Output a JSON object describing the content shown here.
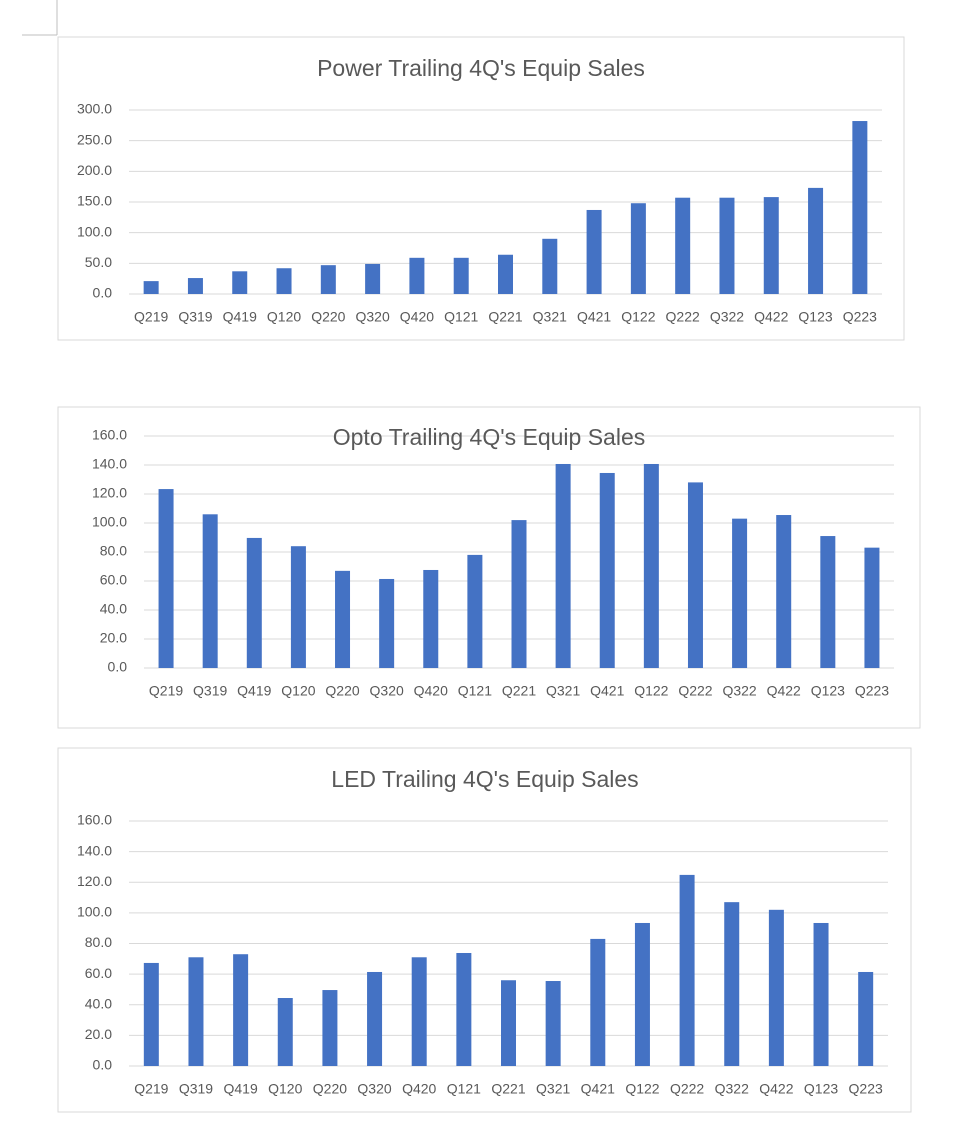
{
  "chart_data": [
    {
      "type": "bar",
      "title": "Power Trailing 4Q's Equip Sales",
      "categories": [
        "Q219",
        "Q319",
        "Q419",
        "Q120",
        "Q220",
        "Q320",
        "Q420",
        "Q121",
        "Q221",
        "Q321",
        "Q421",
        "Q122",
        "Q222",
        "Q322",
        "Q422",
        "Q123",
        "Q223"
      ],
      "values": [
        21,
        26,
        37,
        42,
        47,
        49,
        59,
        59,
        64,
        90,
        137,
        148,
        157,
        157,
        158,
        173,
        282
      ],
      "color": "#4472c4",
      "ylim": [
        0,
        300
      ],
      "yticks": [
        {
          "value": 0,
          "label": "0.0"
        },
        {
          "value": 50,
          "label": "50.0"
        },
        {
          "value": 100,
          "label": "100.0"
        },
        {
          "value": 150,
          "label": "150.0"
        },
        {
          "value": 200,
          "label": "200.0"
        },
        {
          "value": 250,
          "label": "250.0"
        },
        {
          "value": 300,
          "label": "300.0"
        }
      ],
      "grid": true
    },
    {
      "type": "bar",
      "title": "Opto Trailing 4Q's Equip Sales",
      "categories": [
        "Q219",
        "Q319",
        "Q419",
        "Q120",
        "Q220",
        "Q320",
        "Q420",
        "Q121",
        "Q221",
        "Q321",
        "Q421",
        "Q122",
        "Q222",
        "Q322",
        "Q422",
        "Q123",
        "Q223"
      ],
      "values": [
        123.4,
        106,
        89.7,
        84,
        67,
        61.4,
        67.6,
        78,
        102,
        140.7,
        134.5,
        140.7,
        128,
        103,
        105.5,
        91,
        83
      ],
      "color": "#4472c4",
      "ylim": [
        0,
        160
      ],
      "yticks": [
        {
          "value": 0,
          "label": "0.0"
        },
        {
          "value": 20,
          "label": "20.0"
        },
        {
          "value": 40,
          "label": "40.0"
        },
        {
          "value": 60,
          "label": "60.0"
        },
        {
          "value": 80,
          "label": "80.0"
        },
        {
          "value": 100,
          "label": "100.0"
        },
        {
          "value": 120,
          "label": "120.0"
        },
        {
          "value": 140,
          "label": "140.0"
        },
        {
          "value": 160,
          "label": "160.0"
        }
      ],
      "grid": true
    },
    {
      "type": "bar",
      "title": "LED Trailing 4Q's Equip Sales",
      "categories": [
        "Q219",
        "Q319",
        "Q419",
        "Q120",
        "Q220",
        "Q320",
        "Q420",
        "Q121",
        "Q221",
        "Q321",
        "Q421",
        "Q122",
        "Q222",
        "Q322",
        "Q422",
        "Q123",
        "Q223"
      ],
      "values": [
        67.3,
        71,
        73,
        44.4,
        49.6,
        61.4,
        71,
        73.8,
        56,
        55.5,
        83,
        93.4,
        124.8,
        107,
        102,
        93.4,
        61.4
      ],
      "color": "#4472c4",
      "ylim": [
        0,
        160
      ],
      "yticks": [
        {
          "value": 0,
          "label": "0.0"
        },
        {
          "value": 20,
          "label": "20.0"
        },
        {
          "value": 40,
          "label": "40.0"
        },
        {
          "value": 60,
          "label": "60.0"
        },
        {
          "value": 80,
          "label": "80.0"
        },
        {
          "value": 100,
          "label": "100.0"
        },
        {
          "value": 120,
          "label": "120.0"
        },
        {
          "value": 140,
          "label": "140.0"
        },
        {
          "value": 160,
          "label": "160.0"
        }
      ],
      "grid": true
    }
  ]
}
